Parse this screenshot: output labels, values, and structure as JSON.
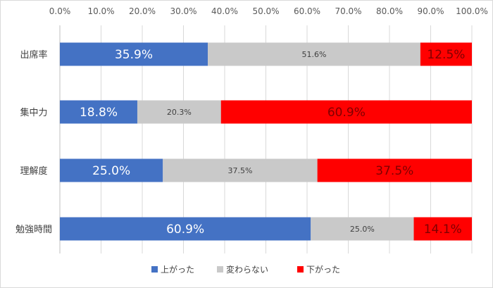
{
  "chart_data": {
    "type": "bar",
    "orientation": "horizontal",
    "stacked": "100%",
    "categories": [
      "出席率",
      "集中力",
      "理解度",
      "勉強時間"
    ],
    "series": [
      {
        "name": "上がった",
        "values": [
          35.9,
          18.8,
          25.0,
          60.9
        ],
        "labels": [
          "35.9%",
          "18.8%",
          "25.0%",
          "60.9%"
        ],
        "color": "#4472c4",
        "label_color": "#ffffff",
        "label_size": "large"
      },
      {
        "name": "変わらない",
        "values": [
          51.6,
          20.3,
          37.5,
          25.0
        ],
        "labels": [
          "51.6%",
          "20.3%",
          "37.5%",
          "25.0%"
        ],
        "color": "#c9c9c9",
        "label_color": "#404040",
        "label_size": "small"
      },
      {
        "name": "下がった",
        "values": [
          12.5,
          60.9,
          37.5,
          14.1
        ],
        "labels": [
          "12.5%",
          "60.9%",
          "37.5%",
          "14.1%"
        ],
        "color": "#ff0000",
        "label_color": "#7f0000",
        "label_size": "large"
      }
    ],
    "x_ticks": [
      "0.0%",
      "10.0%",
      "20.0%",
      "30.0%",
      "40.0%",
      "50.0%",
      "60.0%",
      "70.0%",
      "80.0%",
      "90.0%",
      "100.0%"
    ],
    "xlim": [
      0,
      100
    ],
    "axis_position": "top",
    "grid": true,
    "legend_position": "bottom"
  }
}
